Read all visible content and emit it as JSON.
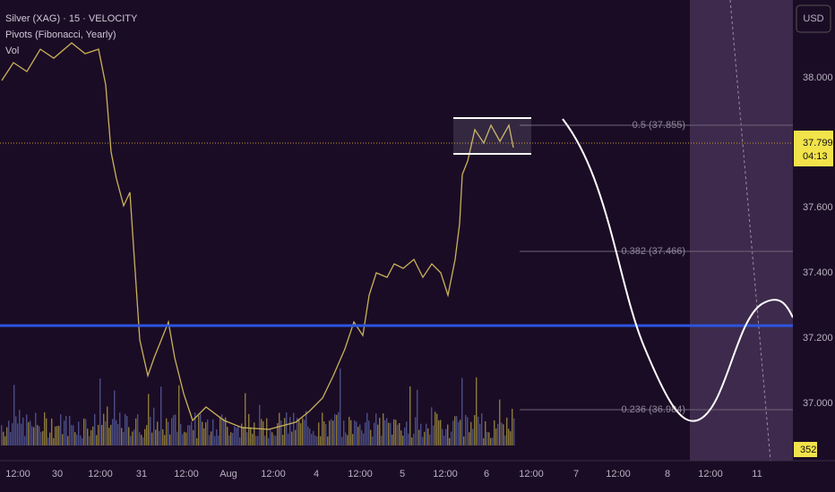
{
  "header": {
    "symbol": "Silver (XAG) · 15 · VELOCITY",
    "indicator": "Pivots (Fibonacci, Yearly)",
    "volume": "Vol"
  },
  "price_axis": {
    "currency": "USD",
    "labels": [
      "38.000",
      "37.600",
      "37.400",
      "37.200",
      "37.000"
    ],
    "last_price": "37.799",
    "countdown": "04:13",
    "volume_tag": "352"
  },
  "fib_levels": [
    "0.5 (37.855)",
    "0.382 (37.466)",
    "0.236 (36.984)"
  ],
  "time_axis": [
    "12:00",
    "30",
    "12:00",
    "31",
    "12:00",
    "Aug",
    "12:00",
    "4",
    "12:00",
    "5",
    "12:00",
    "6",
    "12:00",
    "7",
    "12:00",
    "8",
    "12:00",
    "11"
  ]
}
